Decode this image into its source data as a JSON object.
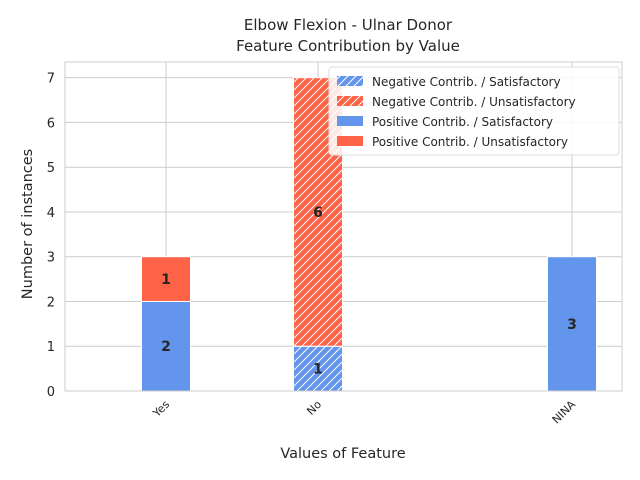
{
  "chart_data": {
    "type": "bar",
    "stacked": true,
    "title_line1": "Elbow Flexion - Ulnar Donor",
    "title_line2": "Feature Contribution by Value",
    "xlabel": "Values of Feature",
    "ylabel": "Number of instances",
    "categories": [
      "Yes",
      "No",
      "NINA"
    ],
    "ylim": [
      0,
      7.35
    ],
    "yticks": [
      "0",
      "1",
      "2",
      "3",
      "4",
      "5",
      "6",
      "7"
    ],
    "grid": true,
    "legend_position": "top-right",
    "series": [
      {
        "name": "Negative Contrib. / Satisfactory",
        "color": "#6495ed",
        "hatch": true,
        "group": "negative",
        "values": [
          0,
          1,
          0
        ]
      },
      {
        "name": "Negative Contrib. / Unsatisfactory",
        "color": "#ff6347",
        "hatch": true,
        "group": "negative",
        "values": [
          0,
          6,
          0
        ]
      },
      {
        "name": "Positive Contrib. / Satisfactory",
        "color": "#6495ed",
        "hatch": false,
        "group": "positive",
        "values": [
          2,
          0,
          3
        ]
      },
      {
        "name": "Positive Contrib. / Unsatisfactory",
        "color": "#ff6347",
        "hatch": false,
        "group": "positive",
        "values": [
          1,
          0,
          0
        ]
      }
    ]
  }
}
